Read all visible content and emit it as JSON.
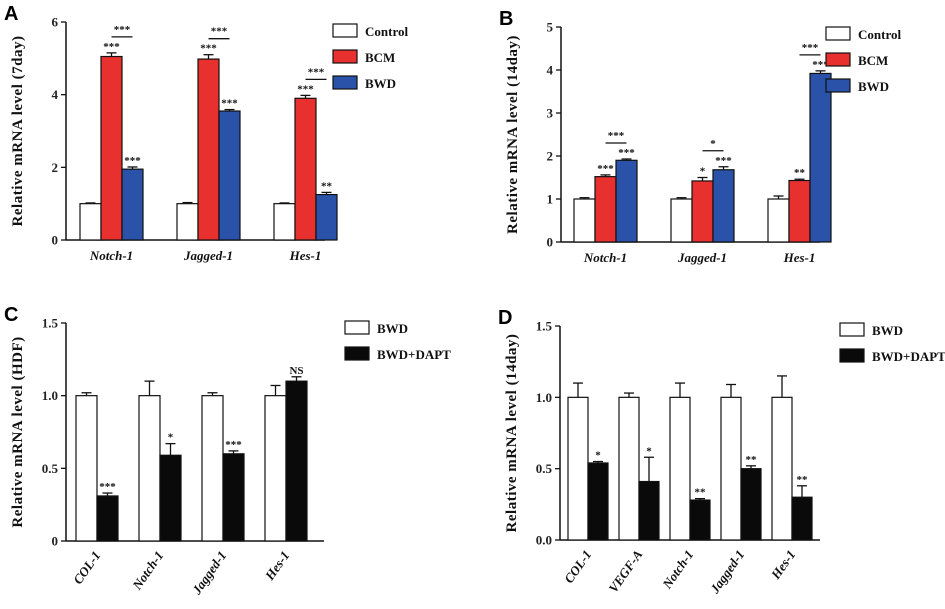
{
  "colors": {
    "control": "#ffffff",
    "bcm": "#e8302f",
    "bwd": "#2a52a8",
    "bwd_white": "#ffffff",
    "dapt": "#0a0a0a"
  },
  "chart_data": [
    {
      "panel": "A",
      "type": "bar",
      "ylabel": "Relative mRNA level (7day)",
      "ylim": [
        0,
        6
      ],
      "yticks": [
        "0",
        "2",
        "4",
        "6"
      ],
      "categories": [
        "Notch-1",
        "Jagged-1",
        "Hes-1"
      ],
      "series": [
        {
          "name": "Control",
          "color": "#ffffff",
          "values": [
            1.0,
            1.0,
            1.0
          ],
          "errors": [
            0.02,
            0.03,
            0.02
          ],
          "sig": [
            "",
            "",
            ""
          ]
        },
        {
          "name": "BCM",
          "color": "#e8302f",
          "values": [
            5.05,
            4.98,
            3.9
          ],
          "errors": [
            0.1,
            0.12,
            0.08
          ],
          "sig": [
            "***",
            "***",
            "***"
          ]
        },
        {
          "name": "BWD",
          "color": "#2a52a8",
          "values": [
            1.95,
            3.55,
            1.25
          ],
          "errors": [
            0.06,
            0.04,
            0.06
          ],
          "sig": [
            "***",
            "***",
            "**"
          ]
        }
      ],
      "brackets": [
        {
          "cat": 0,
          "from": 1,
          "to": 2,
          "label": "***"
        },
        {
          "cat": 1,
          "from": 1,
          "to": 2,
          "label": "***"
        },
        {
          "cat": 2,
          "from": 1,
          "to": 2,
          "label": "***"
        }
      ],
      "legend": [
        "Control",
        "BCM",
        "BWD"
      ]
    },
    {
      "panel": "B",
      "type": "bar",
      "ylabel": "Relative mRNA level (14day)",
      "ylim": [
        0,
        5
      ],
      "yticks": [
        "0",
        "1",
        "2",
        "3",
        "4",
        "5"
      ],
      "categories": [
        "Notch-1",
        "Jagged-1",
        "Hes-1"
      ],
      "series": [
        {
          "name": "Control",
          "color": "#ffffff",
          "values": [
            1.0,
            1.0,
            1.0
          ],
          "errors": [
            0.03,
            0.03,
            0.07
          ],
          "sig": [
            "",
            "",
            ""
          ]
        },
        {
          "name": "BCM",
          "color": "#e8302f",
          "values": [
            1.52,
            1.42,
            1.43
          ],
          "errors": [
            0.04,
            0.08,
            0.03
          ],
          "sig": [
            "***",
            "*",
            "**"
          ]
        },
        {
          "name": "BWD",
          "color": "#2a52a8",
          "values": [
            1.9,
            1.68,
            3.92
          ],
          "errors": [
            0.03,
            0.07,
            0.06
          ],
          "sig": [
            "***",
            "***",
            "***"
          ]
        }
      ],
      "brackets": [
        {
          "cat": 0,
          "from": 1,
          "to": 2,
          "label": "***"
        },
        {
          "cat": 1,
          "from": 1,
          "to": 2,
          "label": "*"
        },
        {
          "cat": 2,
          "from": 1,
          "to": 2,
          "label": "***"
        }
      ],
      "legend": [
        "Control",
        "BCM",
        "BWD"
      ]
    },
    {
      "panel": "C",
      "type": "bar",
      "ylabel": "Relative mRNA level (HDF)",
      "ylim": [
        0,
        1.5
      ],
      "yticks": [
        "0",
        "0.5",
        "1.0",
        "1.5"
      ],
      "categories": [
        "COL-1",
        "Notch-1",
        "Jagged-1",
        "Hes-1"
      ],
      "series": [
        {
          "name": "BWD",
          "color": "#ffffff",
          "values": [
            1.0,
            1.0,
            1.0,
            1.0
          ],
          "errors": [
            0.02,
            0.1,
            0.02,
            0.07
          ],
          "sig": [
            "",
            "",
            "",
            ""
          ]
        },
        {
          "name": "BWD+DAPT",
          "color": "#0a0a0a",
          "values": [
            0.31,
            0.59,
            0.6,
            1.1
          ],
          "errors": [
            0.02,
            0.08,
            0.02,
            0.03
          ],
          "sig": [
            "***",
            "*",
            "***",
            "NS"
          ]
        }
      ],
      "brackets": [],
      "legend": [
        "BWD",
        "BWD+DAPT"
      ]
    },
    {
      "panel": "D",
      "type": "bar",
      "ylabel": "Relative mRNA level (14day)",
      "ylim": [
        0,
        1.5
      ],
      "yticks": [
        "0.0",
        "0.5",
        "1.0",
        "1.5"
      ],
      "categories": [
        "COL-1",
        "VEGF-A",
        "Notch-1",
        "Jagged-1",
        "Hes-1"
      ],
      "series": [
        {
          "name": "BWD",
          "color": "#ffffff",
          "values": [
            1.0,
            1.0,
            1.0,
            1.0,
            1.0
          ],
          "errors": [
            0.1,
            0.03,
            0.1,
            0.09,
            0.15
          ],
          "sig": [
            "",
            "",
            "",
            "",
            ""
          ]
        },
        {
          "name": "BWD+DAPT",
          "color": "#0a0a0a",
          "values": [
            0.54,
            0.41,
            0.28,
            0.5,
            0.3
          ],
          "errors": [
            0.01,
            0.17,
            0.01,
            0.02,
            0.08
          ],
          "sig": [
            "*",
            "*",
            "**",
            "**",
            "**"
          ]
        }
      ],
      "brackets": [],
      "legend": [
        "BWD",
        "BWD+DAPT"
      ]
    }
  ]
}
